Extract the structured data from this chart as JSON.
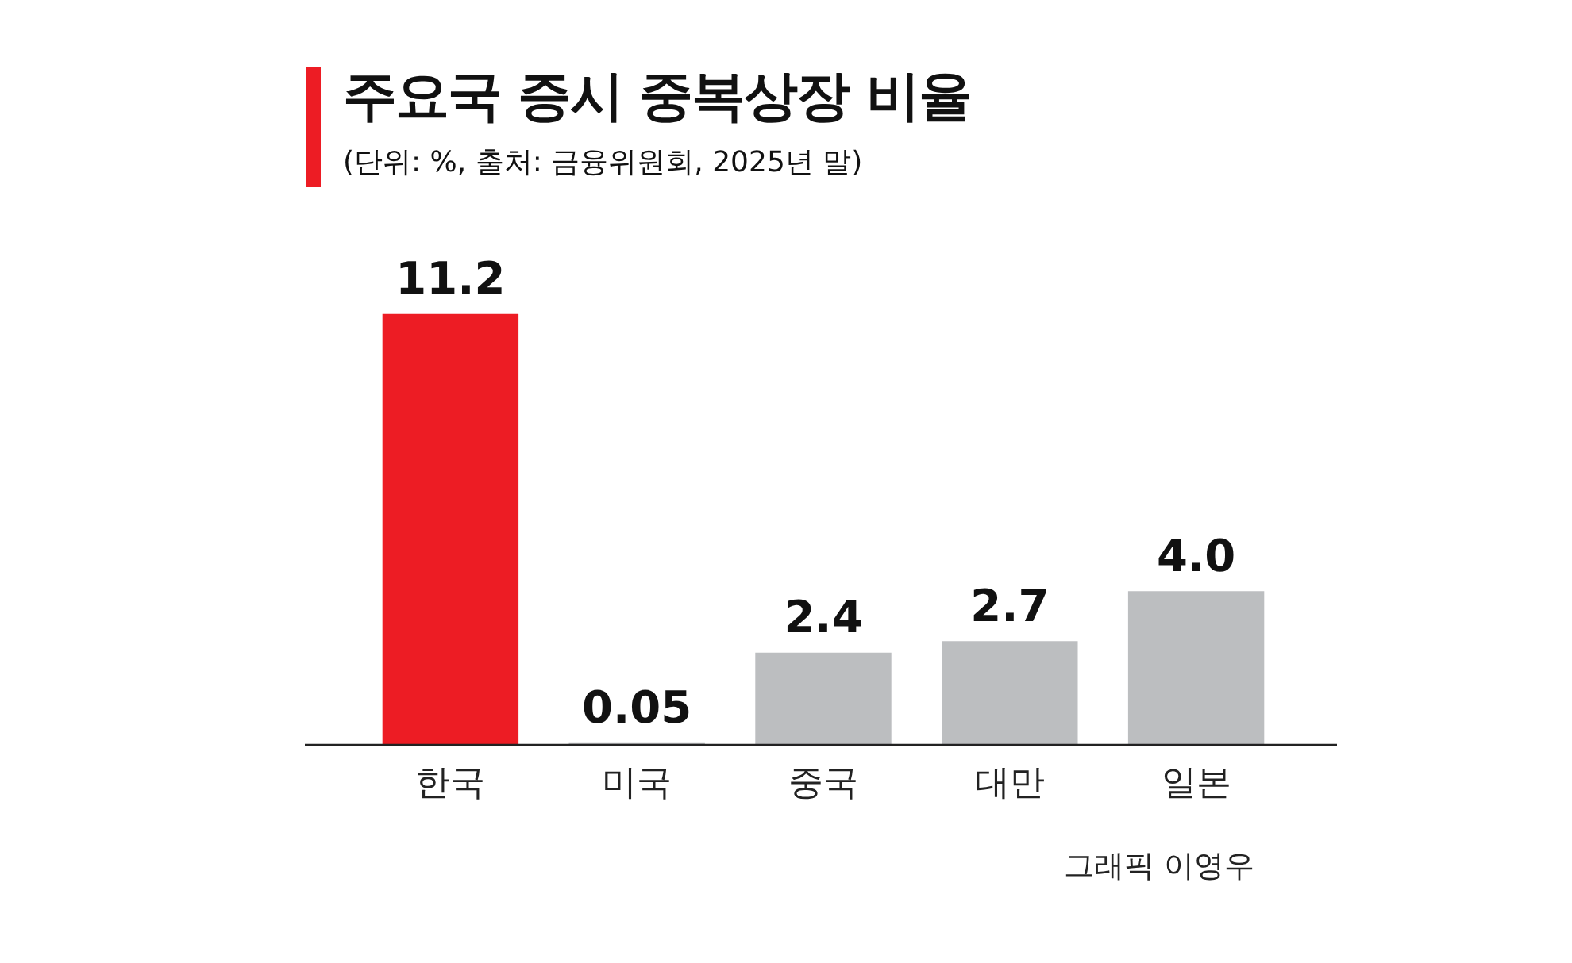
{
  "chart_data": {
    "type": "bar",
    "title": "주요국 증시 중복상장 비율",
    "subtitle": "(단위: %, 출처: 금융위원회, 2025년 말)",
    "categories": [
      "한국",
      "미국",
      "중국",
      "대만",
      "일본"
    ],
    "values": [
      11.2,
      0.05,
      2.4,
      2.7,
      4.0
    ],
    "value_labels": [
      "11.2",
      "0.05",
      "2.4",
      "2.7",
      "4.0"
    ],
    "colors": [
      "#ed1c24",
      "#bcbec0",
      "#bcbec0",
      "#bcbec0",
      "#bcbec0"
    ],
    "grid": false,
    "legend": false,
    "tick_labels": "x",
    "annotations": [
      "그래픽 이영우"
    ]
  }
}
